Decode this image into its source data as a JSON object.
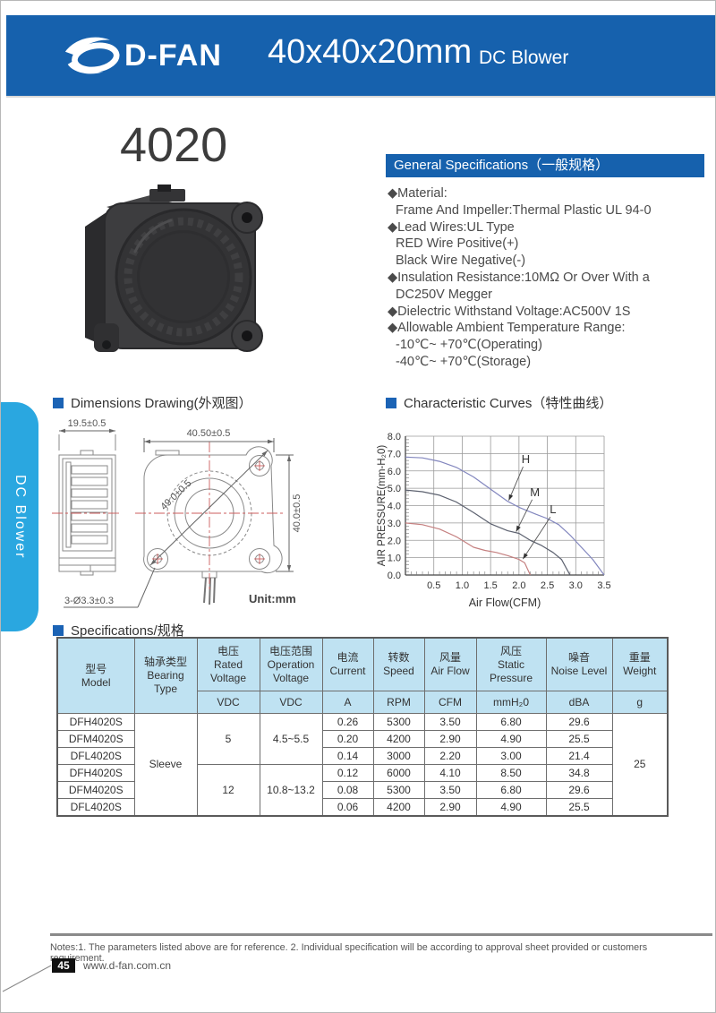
{
  "header": {
    "brand": "D-FAN",
    "size_title": "40x40x20mm",
    "product_type": "DC Blower"
  },
  "side_tab": {
    "label": "DC Blower"
  },
  "model": {
    "number": "4020"
  },
  "general_specs": {
    "title": "General Specifications（一般规格）",
    "items": [
      "◆Material:",
      "Frame And Impeller:Thermal Plastic UL 94-0",
      "◆Lead Wires:UL Type",
      "RED Wire Positive(+)",
      "Black Wire Negative(-)",
      "◆Insulation Resistance:10MΩ Or Over With a",
      "DC250V Megger",
      "◆Dielectric Withstand Voltage:AC500V 1S",
      "◆Allowable Ambient Temperature Range:",
      "-10℃~ +70℃(Operating)",
      "-40℃~ +70℃(Storage)"
    ]
  },
  "dimensions": {
    "title": "Dimensions Drawing(外观图）",
    "dim_side_width": "19.5±0.5",
    "dim_front_width": "40.50±0.5",
    "dim_diagonal": "49.0±0.5",
    "dim_front_height": "40.0±0.5",
    "dim_holes": "3-Ø3.3±0.3",
    "unit": "Unit:mm"
  },
  "curves": {
    "title": "Characteristic Curves（特性曲线）",
    "chart_data": {
      "type": "line",
      "xlabel": "Air  Flow(CFM)",
      "ylabel": "AIR PRESSURE(mm-H₂0)",
      "xlim": [
        0,
        3.5
      ],
      "ylim": [
        0,
        8
      ],
      "xticks": [
        0.5,
        1.0,
        1.5,
        2.0,
        2.5,
        3.0,
        3.5
      ],
      "yticks": [
        0,
        1,
        2,
        3,
        4,
        5,
        6,
        7,
        8
      ],
      "grid": true,
      "series": [
        {
          "name": "H",
          "color": "#8286be",
          "points": [
            [
              0,
              6.8
            ],
            [
              0.3,
              6.75
            ],
            [
              0.6,
              6.55
            ],
            [
              0.9,
              6.2
            ],
            [
              1.2,
              5.65
            ],
            [
              1.5,
              4.95
            ],
            [
              1.8,
              4.25
            ],
            [
              2.0,
              3.9
            ],
            [
              2.3,
              3.5
            ],
            [
              2.5,
              3.25
            ],
            [
              2.7,
              2.9
            ],
            [
              2.9,
              2.3
            ],
            [
              3.1,
              1.6
            ],
            [
              3.3,
              0.9
            ],
            [
              3.5,
              0
            ]
          ]
        },
        {
          "name": "M",
          "color": "#5c616f",
          "points": [
            [
              0,
              4.9
            ],
            [
              0.3,
              4.8
            ],
            [
              0.6,
              4.6
            ],
            [
              0.9,
              4.2
            ],
            [
              1.2,
              3.6
            ],
            [
              1.5,
              2.95
            ],
            [
              1.8,
              2.55
            ],
            [
              2.0,
              2.4
            ],
            [
              2.2,
              2.0
            ],
            [
              2.4,
              1.7
            ],
            [
              2.6,
              1.3
            ],
            [
              2.75,
              0.9
            ],
            [
              2.9,
              0
            ]
          ]
        },
        {
          "name": "L",
          "color": "#c58080",
          "points": [
            [
              0,
              3.0
            ],
            [
              0.3,
              2.9
            ],
            [
              0.6,
              2.65
            ],
            [
              0.9,
              2.2
            ],
            [
              1.2,
              1.6
            ],
            [
              1.4,
              1.42
            ],
            [
              1.6,
              1.3
            ],
            [
              1.8,
              1.12
            ],
            [
              2.0,
              0.9
            ],
            [
              2.1,
              0.7
            ],
            [
              2.2,
              0
            ]
          ]
        }
      ],
      "annotations": [
        {
          "label": "H",
          "at": [
            2.12,
            6.45
          ],
          "arrow_to": [
            1.82,
            4.3
          ]
        },
        {
          "label": "M",
          "at": [
            2.28,
            4.55
          ],
          "arrow_to": [
            1.95,
            2.5
          ]
        },
        {
          "label": "L",
          "at": [
            2.6,
            3.55
          ],
          "arrow_to": [
            2.07,
            0.92
          ]
        }
      ]
    }
  },
  "spec_table": {
    "title": "Specifications/规格",
    "headers": {
      "model": "型号\nModel",
      "bearing": "轴承类型\nBearing\nType",
      "rated_voltage": "电压\nRated\nVoltage",
      "operation_voltage": "电压范围\nOperation\nVoltage",
      "current": "电流\nCurrent",
      "speed": "转数\nSpeed",
      "air_flow": "风量\nAir Flow",
      "static_pressure": "风压\nStatic\nPressure",
      "noise": "噪音\nNoise Level",
      "weight": "重量\nWeight"
    },
    "units": {
      "rated_voltage": "VDC",
      "operation_voltage": "VDC",
      "current": "A",
      "speed": "RPM",
      "air_flow": "CFM",
      "static_pressure": "mmH₂0",
      "noise": "dBA",
      "weight": "g"
    },
    "bearing_type": "Sleeve",
    "weight_value": "25",
    "groups": [
      {
        "rated": "5",
        "operation": "4.5~5.5"
      },
      {
        "rated": "12",
        "operation": "10.8~13.2"
      }
    ],
    "rows": [
      {
        "model": "DFH4020S",
        "current": "0.26",
        "speed": "5300",
        "air_flow": "3.50",
        "pressure": "6.80",
        "noise": "29.6"
      },
      {
        "model": "DFM4020S",
        "current": "0.20",
        "speed": "4200",
        "air_flow": "2.90",
        "pressure": "4.90",
        "noise": "25.5"
      },
      {
        "model": "DFL4020S",
        "current": "0.14",
        "speed": "3000",
        "air_flow": "2.20",
        "pressure": "3.00",
        "noise": "21.4"
      },
      {
        "model": "DFH4020S",
        "current": "0.12",
        "speed": "6000",
        "air_flow": "4.10",
        "pressure": "8.50",
        "noise": "34.8"
      },
      {
        "model": "DFM4020S",
        "current": "0.08",
        "speed": "5300",
        "air_flow": "3.50",
        "pressure": "6.80",
        "noise": "29.6"
      },
      {
        "model": "DFL4020S",
        "current": "0.06",
        "speed": "4200",
        "air_flow": "2.90",
        "pressure": "4.90",
        "noise": "25.5"
      }
    ]
  },
  "footer": {
    "notes": "Notes:1. The parameters listed above are for reference.   2. Individual specification will be according to approval sheet provided or customers requirement.",
    "page_number": "45",
    "website": "www.d-fan.com.cn"
  },
  "colors": {
    "header_blue": "#1661ad",
    "tab_cyan": "#2aa7e0",
    "table_header_bg": "#bfe2f2",
    "centerline_red": "#cc5c5c"
  }
}
